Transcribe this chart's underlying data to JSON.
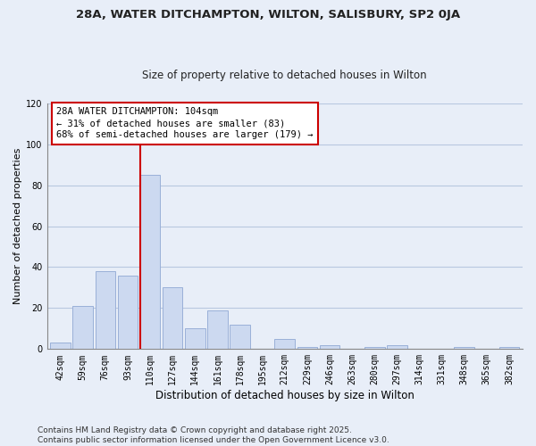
{
  "title": "28A, WATER DITCHAMPTON, WILTON, SALISBURY, SP2 0JA",
  "subtitle": "Size of property relative to detached houses in Wilton",
  "xlabel": "Distribution of detached houses by size in Wilton",
  "ylabel": "Number of detached properties",
  "bin_labels": [
    "42sqm",
    "59sqm",
    "76sqm",
    "93sqm",
    "110sqm",
    "127sqm",
    "144sqm",
    "161sqm",
    "178sqm",
    "195sqm",
    "212sqm",
    "229sqm",
    "246sqm",
    "263sqm",
    "280sqm",
    "297sqm",
    "314sqm",
    "331sqm",
    "348sqm",
    "365sqm",
    "382sqm"
  ],
  "bar_heights": [
    3,
    21,
    38,
    36,
    85,
    30,
    10,
    19,
    12,
    0,
    5,
    1,
    2,
    0,
    1,
    2,
    0,
    0,
    1,
    0,
    1
  ],
  "bar_color": "#ccd9f0",
  "bar_edge_color": "#9ab0d8",
  "vline_index": 4,
  "vline_color": "#cc0000",
  "annotation_title": "28A WATER DITCHAMPTON: 104sqm",
  "annotation_line1": "← 31% of detached houses are smaller (83)",
  "annotation_line2": "68% of semi-detached houses are larger (179) →",
  "annotation_box_color": "#ffffff",
  "annotation_box_edge": "#cc0000",
  "ylim": [
    0,
    120
  ],
  "yticks": [
    0,
    20,
    40,
    60,
    80,
    100,
    120
  ],
  "footnote1": "Contains HM Land Registry data © Crown copyright and database right 2025.",
  "footnote2": "Contains public sector information licensed under the Open Government Licence v3.0.",
  "bg_color": "#e8eef8",
  "plot_bg_color": "#e8eef8",
  "grid_color": "#b8c8e0",
  "title_fontsize": 9.5,
  "subtitle_fontsize": 8.5,
  "tick_fontsize": 7,
  "ylabel_fontsize": 8,
  "xlabel_fontsize": 8.5,
  "footnote_fontsize": 6.5
}
